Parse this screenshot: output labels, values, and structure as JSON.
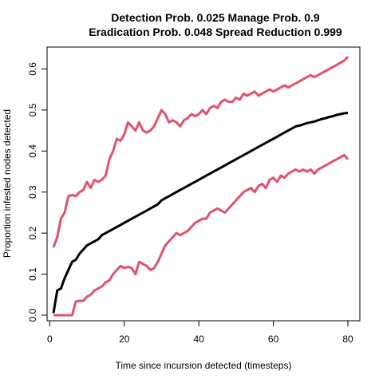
{
  "chart_data": {
    "type": "line",
    "title_line1": "Detection Prob. 0.025 Manage Prob. 0.9",
    "title_line2": "Eradication Prob. 0.048 Spread Reduction 0.999",
    "xlabel": "Time since incursion detected (timesteps)",
    "ylabel": "Proportion infested nodes detected",
    "xlim": [
      1,
      80
    ],
    "ylim": [
      0,
      0.63
    ],
    "x_ticks": [
      0,
      20,
      40,
      60,
      80
    ],
    "x_tick_labels": [
      "0",
      "20",
      "40",
      "60",
      "80"
    ],
    "y_ticks": [
      0.0,
      0.1,
      0.2,
      0.3,
      0.4,
      0.5,
      0.6
    ],
    "y_tick_labels": [
      "0.0",
      "0.1",
      "0.2",
      "0.3",
      "0.4",
      "0.5",
      "0.6"
    ],
    "grid": false,
    "series": [
      {
        "role": "upper",
        "color": "#DF536B",
        "points": [
          [
            1,
            0.165
          ],
          [
            2,
            0.19
          ],
          [
            3,
            0.235
          ],
          [
            4,
            0.25
          ],
          [
            5,
            0.29
          ],
          [
            6,
            0.293
          ],
          [
            7,
            0.29
          ],
          [
            8,
            0.3
          ],
          [
            9,
            0.305
          ],
          [
            10,
            0.325
          ],
          [
            11,
            0.31
          ],
          [
            12,
            0.33
          ],
          [
            13,
            0.325
          ],
          [
            14,
            0.33
          ],
          [
            15,
            0.34
          ],
          [
            16,
            0.38
          ],
          [
            17,
            0.4
          ],
          [
            18,
            0.43
          ],
          [
            19,
            0.425
          ],
          [
            20,
            0.44
          ],
          [
            21,
            0.47
          ],
          [
            22,
            0.46
          ],
          [
            23,
            0.45
          ],
          [
            24,
            0.47
          ],
          [
            25,
            0.45
          ],
          [
            26,
            0.445
          ],
          [
            27,
            0.45
          ],
          [
            28,
            0.46
          ],
          [
            29,
            0.48
          ],
          [
            30,
            0.5
          ],
          [
            31,
            0.49
          ],
          [
            32,
            0.47
          ],
          [
            33,
            0.475
          ],
          [
            34,
            0.47
          ],
          [
            35,
            0.46
          ],
          [
            36,
            0.475
          ],
          [
            37,
            0.48
          ],
          [
            38,
            0.49
          ],
          [
            39,
            0.485
          ],
          [
            40,
            0.49
          ],
          [
            41,
            0.5
          ],
          [
            42,
            0.49
          ],
          [
            43,
            0.505
          ],
          [
            44,
            0.51
          ],
          [
            45,
            0.505
          ],
          [
            46,
            0.52
          ],
          [
            47,
            0.525
          ],
          [
            48,
            0.52
          ],
          [
            49,
            0.52
          ],
          [
            50,
            0.53
          ],
          [
            51,
            0.525
          ],
          [
            52,
            0.54
          ],
          [
            53,
            0.535
          ],
          [
            54,
            0.54
          ],
          [
            55,
            0.545
          ],
          [
            56,
            0.535
          ],
          [
            57,
            0.54
          ],
          [
            58,
            0.545
          ],
          [
            59,
            0.55
          ],
          [
            60,
            0.545
          ],
          [
            61,
            0.55
          ],
          [
            62,
            0.555
          ],
          [
            63,
            0.56
          ],
          [
            64,
            0.555
          ],
          [
            65,
            0.56
          ],
          [
            66,
            0.565
          ],
          [
            67,
            0.57
          ],
          [
            68,
            0.575
          ],
          [
            69,
            0.58
          ],
          [
            70,
            0.585
          ],
          [
            71,
            0.58
          ],
          [
            72,
            0.585
          ],
          [
            73,
            0.59
          ],
          [
            74,
            0.595
          ],
          [
            75,
            0.6
          ],
          [
            76,
            0.605
          ],
          [
            77,
            0.61
          ],
          [
            78,
            0.615
          ],
          [
            79,
            0.62
          ],
          [
            80,
            0.63
          ]
        ]
      },
      {
        "role": "mean",
        "color": "#000000",
        "points": [
          [
            1,
            0.005
          ],
          [
            2,
            0.06
          ],
          [
            3,
            0.065
          ],
          [
            4,
            0.09
          ],
          [
            5,
            0.11
          ],
          [
            6,
            0.13
          ],
          [
            7,
            0.135
          ],
          [
            8,
            0.15
          ],
          [
            9,
            0.16
          ],
          [
            10,
            0.17
          ],
          [
            11,
            0.175
          ],
          [
            12,
            0.18
          ],
          [
            13,
            0.185
          ],
          [
            14,
            0.195
          ],
          [
            15,
            0.2
          ],
          [
            16,
            0.205
          ],
          [
            17,
            0.21
          ],
          [
            18,
            0.215
          ],
          [
            19,
            0.22
          ],
          [
            20,
            0.225
          ],
          [
            21,
            0.23
          ],
          [
            22,
            0.235
          ],
          [
            23,
            0.24
          ],
          [
            24,
            0.245
          ],
          [
            25,
            0.25
          ],
          [
            26,
            0.255
          ],
          [
            27,
            0.26
          ],
          [
            28,
            0.265
          ],
          [
            29,
            0.27
          ],
          [
            30,
            0.28
          ],
          [
            31,
            0.285
          ],
          [
            32,
            0.29
          ],
          [
            33,
            0.295
          ],
          [
            34,
            0.3
          ],
          [
            35,
            0.305
          ],
          [
            36,
            0.31
          ],
          [
            37,
            0.315
          ],
          [
            38,
            0.32
          ],
          [
            39,
            0.325
          ],
          [
            40,
            0.33
          ],
          [
            41,
            0.335
          ],
          [
            42,
            0.34
          ],
          [
            43,
            0.345
          ],
          [
            44,
            0.35
          ],
          [
            45,
            0.355
          ],
          [
            46,
            0.36
          ],
          [
            47,
            0.365
          ],
          [
            48,
            0.37
          ],
          [
            49,
            0.375
          ],
          [
            50,
            0.38
          ],
          [
            51,
            0.385
          ],
          [
            52,
            0.39
          ],
          [
            53,
            0.395
          ],
          [
            54,
            0.4
          ],
          [
            55,
            0.405
          ],
          [
            56,
            0.41
          ],
          [
            57,
            0.415
          ],
          [
            58,
            0.42
          ],
          [
            59,
            0.425
          ],
          [
            60,
            0.43
          ],
          [
            61,
            0.435
          ],
          [
            62,
            0.44
          ],
          [
            63,
            0.445
          ],
          [
            64,
            0.45
          ],
          [
            65,
            0.455
          ],
          [
            66,
            0.46
          ],
          [
            67,
            0.462
          ],
          [
            68,
            0.465
          ],
          [
            69,
            0.468
          ],
          [
            70,
            0.47
          ],
          [
            71,
            0.472
          ],
          [
            72,
            0.475
          ],
          [
            73,
            0.478
          ],
          [
            74,
            0.48
          ],
          [
            75,
            0.483
          ],
          [
            76,
            0.485
          ],
          [
            77,
            0.488
          ],
          [
            78,
            0.49
          ],
          [
            79,
            0.492
          ],
          [
            80,
            0.493
          ]
        ]
      },
      {
        "role": "lower",
        "color": "#DF536B",
        "points": [
          [
            1,
            0.0
          ],
          [
            2,
            0.0
          ],
          [
            3,
            0.0
          ],
          [
            4,
            0.0
          ],
          [
            5,
            0.0
          ],
          [
            6,
            0.0
          ],
          [
            7,
            0.033
          ],
          [
            8,
            0.035
          ],
          [
            9,
            0.035
          ],
          [
            10,
            0.045
          ],
          [
            11,
            0.05
          ],
          [
            12,
            0.06
          ],
          [
            13,
            0.065
          ],
          [
            14,
            0.07
          ],
          [
            15,
            0.08
          ],
          [
            16,
            0.085
          ],
          [
            17,
            0.1
          ],
          [
            18,
            0.11
          ],
          [
            19,
            0.12
          ],
          [
            20,
            0.115
          ],
          [
            21,
            0.118
          ],
          [
            22,
            0.115
          ],
          [
            23,
            0.1
          ],
          [
            24,
            0.13
          ],
          [
            25,
            0.125
          ],
          [
            26,
            0.12
          ],
          [
            27,
            0.11
          ],
          [
            28,
            0.115
          ],
          [
            29,
            0.13
          ],
          [
            30,
            0.15
          ],
          [
            31,
            0.17
          ],
          [
            32,
            0.18
          ],
          [
            33,
            0.19
          ],
          [
            34,
            0.2
          ],
          [
            35,
            0.195
          ],
          [
            36,
            0.2
          ],
          [
            37,
            0.205
          ],
          [
            38,
            0.215
          ],
          [
            39,
            0.225
          ],
          [
            40,
            0.23
          ],
          [
            41,
            0.235
          ],
          [
            42,
            0.235
          ],
          [
            43,
            0.25
          ],
          [
            44,
            0.255
          ],
          [
            45,
            0.26
          ],
          [
            46,
            0.255
          ],
          [
            47,
            0.25
          ],
          [
            48,
            0.26
          ],
          [
            49,
            0.27
          ],
          [
            50,
            0.28
          ],
          [
            51,
            0.29
          ],
          [
            52,
            0.3
          ],
          [
            53,
            0.305
          ],
          [
            54,
            0.31
          ],
          [
            55,
            0.3
          ],
          [
            56,
            0.315
          ],
          [
            57,
            0.32
          ],
          [
            58,
            0.31
          ],
          [
            59,
            0.33
          ],
          [
            60,
            0.335
          ],
          [
            61,
            0.325
          ],
          [
            62,
            0.34
          ],
          [
            63,
            0.335
          ],
          [
            64,
            0.345
          ],
          [
            65,
            0.35
          ],
          [
            66,
            0.355
          ],
          [
            67,
            0.35
          ],
          [
            68,
            0.355
          ],
          [
            69,
            0.35
          ],
          [
            70,
            0.355
          ],
          [
            71,
            0.345
          ],
          [
            72,
            0.355
          ],
          [
            73,
            0.36
          ],
          [
            74,
            0.365
          ],
          [
            75,
            0.37
          ],
          [
            76,
            0.375
          ],
          [
            77,
            0.38
          ],
          [
            78,
            0.385
          ],
          [
            79,
            0.39
          ],
          [
            80,
            0.38
          ]
        ]
      }
    ]
  }
}
